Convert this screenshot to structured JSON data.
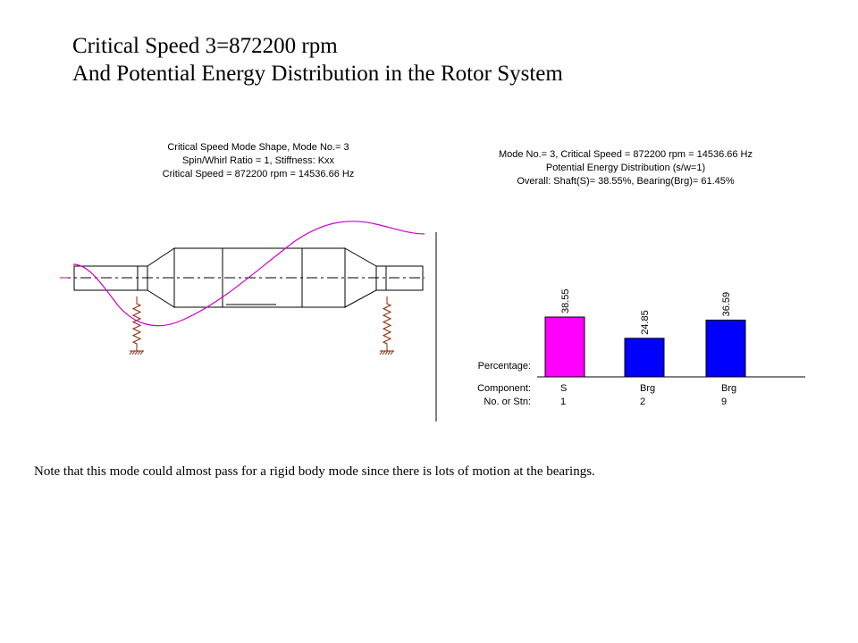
{
  "title": {
    "line1": "Critical Speed 3=872200 rpm",
    "line2": "And Potential Energy Distribution in the Rotor System"
  },
  "mode_shape": {
    "title_lines": [
      "Critical Speed Mode Shape, Mode No.= 3",
      "Spin/Whirl Ratio = 1, Stiffness: Kxx",
      "Critical Speed = 872200 rpm = 14536.66 Hz"
    ],
    "curve_color": "#cc00cc",
    "spring_color": "#8b2500"
  },
  "chart_data": {
    "type": "bar",
    "title_lines": [
      "Mode No.= 3, Critical Speed = 872200 rpm = 14536.66 Hz",
      "Potential Energy Distribution (s/w=1)",
      "Overall: Shaft(S)= 38.55%, Bearing(Brg)= 61.45%"
    ],
    "row_labels": [
      "Percentage:",
      "Component:",
      "No. or Stn:"
    ],
    "components": [
      "S",
      "Brg",
      "Brg"
    ],
    "stations": [
      "1",
      "2",
      "9"
    ],
    "values": [
      38.55,
      24.85,
      36.59
    ],
    "value_labels": [
      "38.55",
      "24.85",
      "36.59"
    ],
    "colors": [
      "#ff00ff",
      "#0000ff",
      "#0000ff"
    ],
    "ylim": [
      0,
      38.55
    ]
  },
  "note": "Note that this mode could almost pass for a rigid body mode since there is lots of motion at the bearings."
}
